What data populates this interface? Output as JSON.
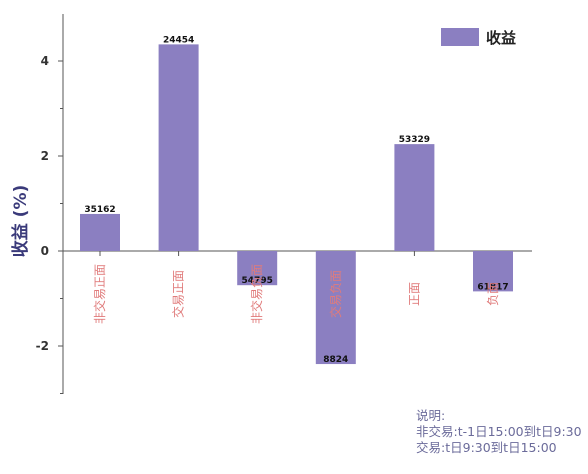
{
  "chart_data": {
    "type": "bar",
    "categories": [
      "非交易正面",
      "交易正面",
      "非交易负面",
      "交易负面",
      "正面",
      "负面"
    ],
    "values": [
      0.78,
      4.35,
      -0.72,
      -2.38,
      2.25,
      -0.85
    ],
    "data_labels": [
      "35162",
      "24454",
      "54795",
      "8824",
      "53329",
      "61817"
    ],
    "ylabel": "收益 (%)",
    "ylim": [
      -3,
      5
    ],
    "yticks": [
      -2,
      0,
      2,
      4
    ],
    "legend": {
      "label": "收益",
      "placement": "top-right"
    },
    "grid": false,
    "colors": {
      "bar": "#8b7fc1",
      "category_label": "#e07b7b",
      "axis": "#555555",
      "ylabel": "#3a3a7a"
    }
  },
  "note": {
    "title": "说明:",
    "lines": [
      "非交易:t-1日15:00到t日9:30",
      "交易:t日9:30到t日15:00"
    ]
  }
}
